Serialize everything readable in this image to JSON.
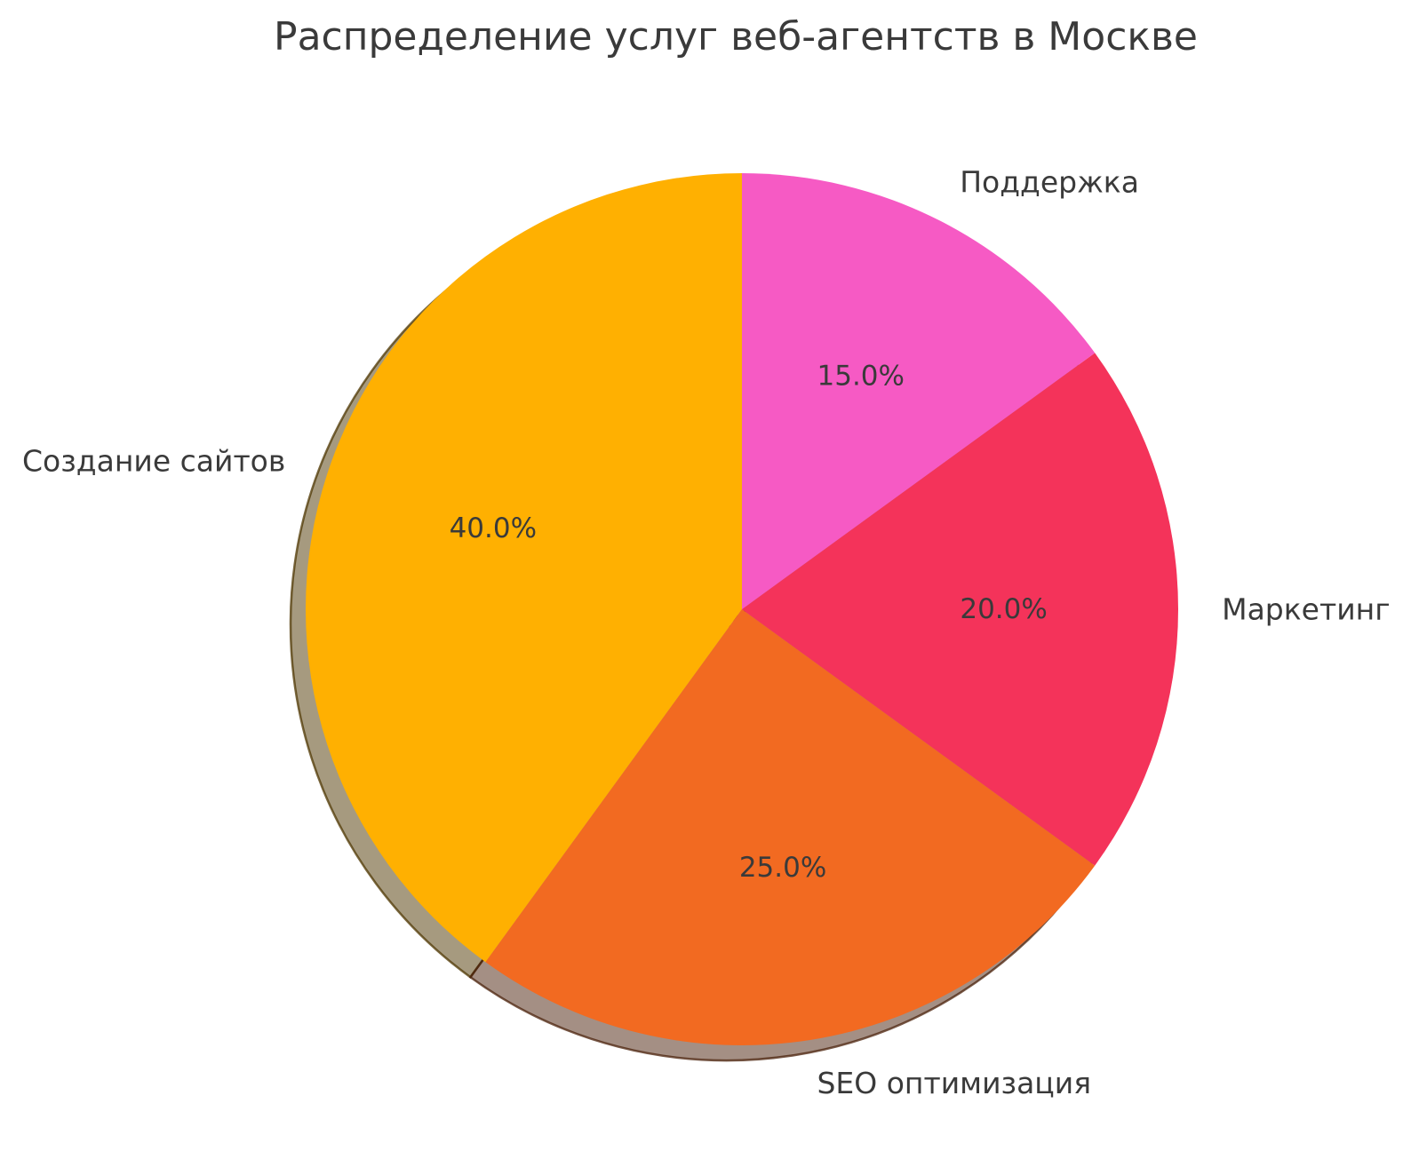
{
  "chart_data": {
    "type": "pie",
    "title": "Распределение услуг веб-агентств в Москве",
    "slices": [
      {
        "label": "Создание сайтов",
        "value": 40.0,
        "pct_label": "40.0%",
        "color": "#FFB001"
      },
      {
        "label": "SEO оптимизация",
        "value": 25.0,
        "pct_label": "25.0%",
        "color": "#F26A21"
      },
      {
        "label": "Маркетинг",
        "value": 20.0,
        "pct_label": "20.0%",
        "color": "#F4335A"
      },
      {
        "label": "Поддержка",
        "value": 15.0,
        "pct_label": "15.0%",
        "color": "#F65AC4"
      }
    ],
    "start_angle": 90,
    "direction": "counterclockwise",
    "shadow": true,
    "label_distance": 1.1,
    "pct_distance": 0.6,
    "legend": "none",
    "text_color": "#3a3a3a"
  }
}
